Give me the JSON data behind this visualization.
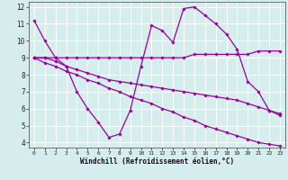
{
  "xlabel": "Windchill (Refroidissement éolien,°C)",
  "xlim": [
    -0.5,
    23.5
  ],
  "ylim": [
    3.7,
    12.3
  ],
  "yticks": [
    4,
    5,
    6,
    7,
    8,
    9,
    10,
    11,
    12
  ],
  "xticks": [
    0,
    1,
    2,
    3,
    4,
    5,
    6,
    7,
    8,
    9,
    10,
    11,
    12,
    13,
    14,
    15,
    16,
    17,
    18,
    19,
    20,
    21,
    22,
    23
  ],
  "background_color": "#d5eeed",
  "grid_color": "#ffffff",
  "line_color": "#990099",
  "lines": [
    {
      "x": [
        0,
        1,
        2,
        3,
        4,
        5,
        6,
        7,
        8,
        9,
        10,
        11,
        12,
        13,
        14,
        15,
        16,
        17,
        18,
        19,
        20,
        21,
        22,
        23
      ],
      "y": [
        11.2,
        10.0,
        9.0,
        8.5,
        7.0,
        6.0,
        5.2,
        4.3,
        4.5,
        5.9,
        8.5,
        10.9,
        10.6,
        9.9,
        11.9,
        12.0,
        11.5,
        11.0,
        10.4,
        9.5,
        7.6,
        7.0,
        5.9,
        5.6
      ]
    },
    {
      "x": [
        0,
        1,
        2,
        3,
        4,
        5,
        6,
        7,
        8,
        9,
        10,
        11,
        12,
        13,
        14,
        15,
        16,
        17,
        18,
        19,
        20,
        21,
        22,
        23
      ],
      "y": [
        9.0,
        9.0,
        9.0,
        9.0,
        9.0,
        9.0,
        9.0,
        9.0,
        9.0,
        9.0,
        9.0,
        9.0,
        9.0,
        9.0,
        9.0,
        9.2,
        9.2,
        9.2,
        9.2,
        9.2,
        9.2,
        9.4,
        9.4,
        9.4
      ]
    },
    {
      "x": [
        0,
        1,
        2,
        3,
        4,
        5,
        6,
        7,
        8,
        9,
        10,
        11,
        12,
        13,
        14,
        15,
        16,
        17,
        18,
        19,
        20,
        21,
        22,
        23
      ],
      "y": [
        9.0,
        9.0,
        8.8,
        8.5,
        8.3,
        8.1,
        7.9,
        7.7,
        7.6,
        7.5,
        7.4,
        7.3,
        7.2,
        7.1,
        7.0,
        6.9,
        6.8,
        6.7,
        6.6,
        6.5,
        6.3,
        6.1,
        5.9,
        5.7
      ]
    },
    {
      "x": [
        0,
        1,
        2,
        3,
        4,
        5,
        6,
        7,
        8,
        9,
        10,
        11,
        12,
        13,
        14,
        15,
        16,
        17,
        18,
        19,
        20,
        21,
        22,
        23
      ],
      "y": [
        9.0,
        8.7,
        8.5,
        8.2,
        8.0,
        7.7,
        7.5,
        7.2,
        7.0,
        6.7,
        6.5,
        6.3,
        6.0,
        5.8,
        5.5,
        5.3,
        5.0,
        4.8,
        4.6,
        4.4,
        4.2,
        4.0,
        3.9,
        3.8
      ]
    }
  ]
}
